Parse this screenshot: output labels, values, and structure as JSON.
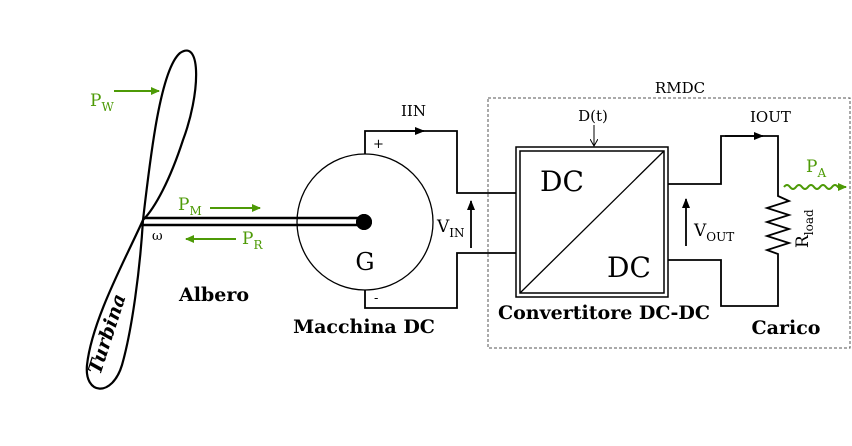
{
  "colors": {
    "power_arrow": "#4d9a06",
    "line": "#000000",
    "dashed_box": "#555555"
  },
  "turbine": {
    "label": "Turbina",
    "wind_power": {
      "main": "P",
      "sub": "W"
    },
    "omega": "ω"
  },
  "shaft": {
    "label": "Albero",
    "mech_power": {
      "main": "P",
      "sub": "M"
    },
    "resist_power": {
      "main": "P",
      "sub": "R"
    }
  },
  "machine": {
    "symbol": "G",
    "label": "Macchina DC",
    "plus": "+",
    "minus": "-",
    "current_in": "IIN",
    "voltage_in": {
      "main": "V",
      "sub": "IN"
    }
  },
  "converter": {
    "top_text": "DC",
    "bottom_text": "DC",
    "duty": "D(t)",
    "label": "Convertitore DC-DC",
    "voltage_out": {
      "main": "V",
      "sub": "OUT"
    }
  },
  "load": {
    "label": "Carico",
    "current_out": "IOUT",
    "resistor": {
      "main": "R",
      "sub": "load"
    },
    "power_out": {
      "main": "P",
      "sub": "A"
    }
  },
  "region_label": "RMDC"
}
